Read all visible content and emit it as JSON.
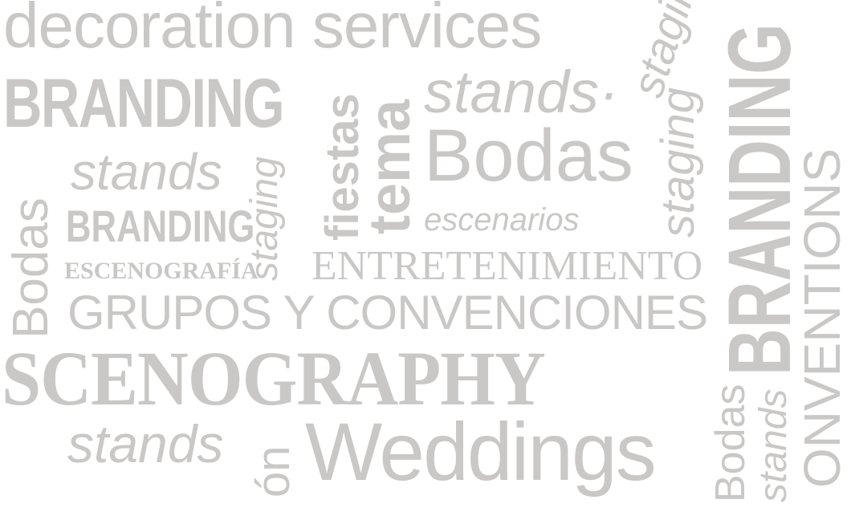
{
  "word_cloud": {
    "words": [
      "decoration services",
      "BRANDING",
      "stands·",
      "stands",
      "Bodas",
      "BRANDING",
      "escenarios",
      "ESCENOGRAFÍA",
      "ENTRETENIMIENTO",
      "GRUPOS Y CONVENCIONES",
      "SCENOGRAPHY",
      "stands",
      "Weddings",
      "Bodas",
      "fiestas",
      "tema",
      "staging",
      "staging",
      "staging",
      "BRANDING",
      "ONVENTIONS",
      "Bodas",
      "stands",
      "ón"
    ]
  },
  "colors": {
    "text": "#c9c8c6",
    "background": "#ffffff"
  }
}
